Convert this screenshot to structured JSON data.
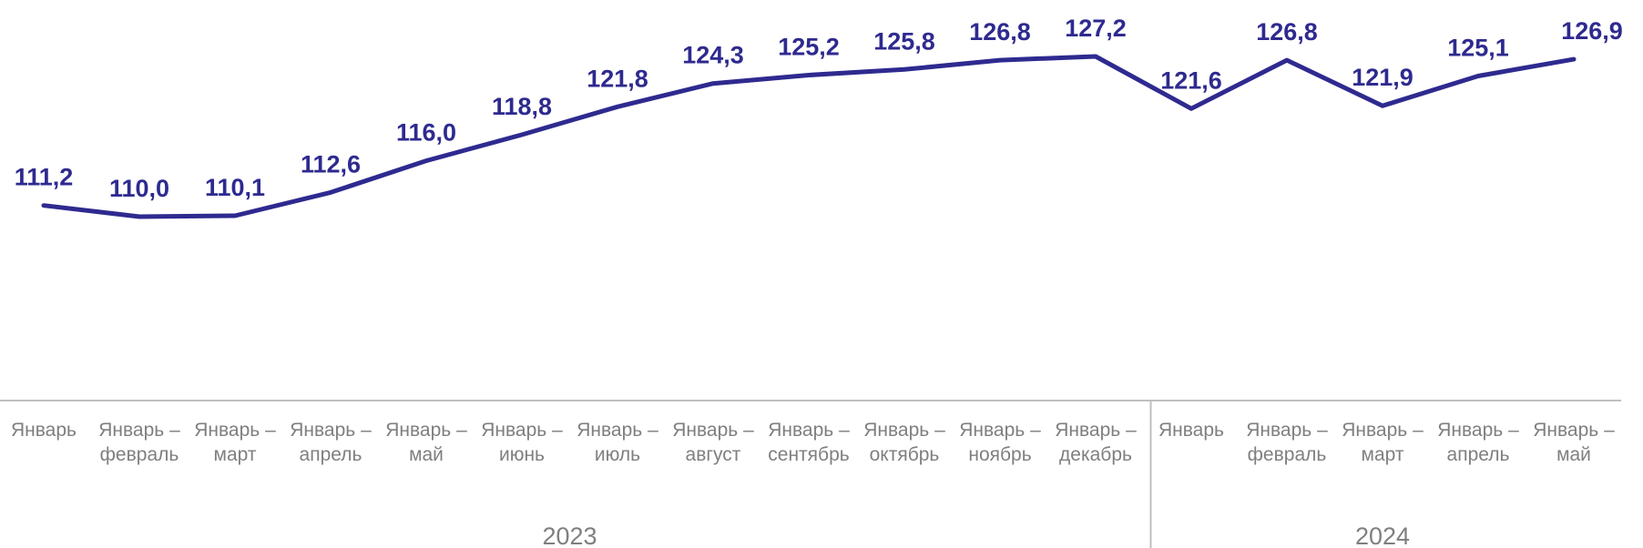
{
  "chart_data": {
    "type": "line",
    "categories": [
      [
        "Январь",
        ""
      ],
      [
        "Январь –",
        "февраль"
      ],
      [
        "Январь –",
        "март"
      ],
      [
        "Январь –",
        "апрель"
      ],
      [
        "Январь –",
        "май"
      ],
      [
        "Январь –",
        "июнь"
      ],
      [
        "Январь –",
        "июль"
      ],
      [
        "Январь –",
        "август"
      ],
      [
        "Январь –",
        "сентябрь"
      ],
      [
        "Январь –",
        "октябрь"
      ],
      [
        "Январь –",
        "ноябрь"
      ],
      [
        "Январь –",
        "декабрь"
      ],
      [
        "Январь",
        ""
      ],
      [
        "Январь –",
        "февраль"
      ],
      [
        "Январь –",
        "март"
      ],
      [
        "Январь –",
        "апрель"
      ],
      [
        "Январь –",
        "май"
      ]
    ],
    "groups": [
      {
        "label": "2023",
        "count": 12
      },
      {
        "label": "2024",
        "count": 5
      }
    ],
    "series": [
      {
        "values": [
          111.2,
          110.0,
          110.1,
          112.6,
          116.0,
          118.8,
          121.8,
          124.3,
          125.2,
          125.8,
          126.8,
          127.2,
          121.6,
          126.8,
          121.9,
          125.1,
          126.9
        ],
        "labels": [
          "111,2",
          "110,0",
          "110,1",
          "112,6",
          "116,0",
          "118,8",
          "121,8",
          "124,3",
          "125,2",
          "125,8",
          "126,8",
          "127,2",
          "121,6",
          "126,8",
          "121,9",
          "125,1",
          "126,9"
        ],
        "color": "#2e2a8f"
      }
    ],
    "ylim": [
      90,
      130
    ],
    "grid": false,
    "legend": "none",
    "title": "",
    "xlabel": "",
    "ylabel": "",
    "colors": {
      "axis": "#bfbfbf",
      "tick_text": "#7f7f7f"
    }
  }
}
